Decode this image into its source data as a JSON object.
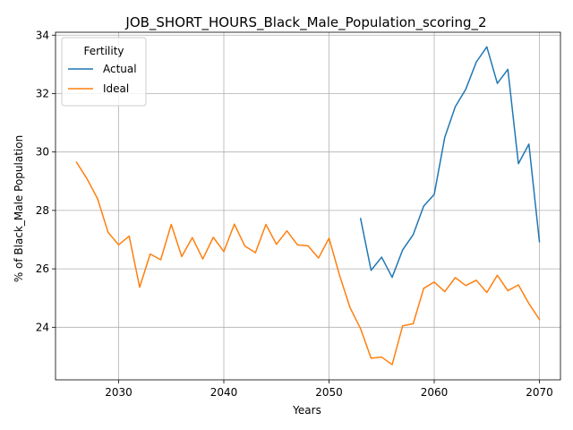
{
  "chart_data": {
    "type": "line",
    "title": "JOB_SHORT_HOURS_Black_Male_Population_scoring_2",
    "xlabel": "Years",
    "ylabel": "% of Black_Male Population",
    "xlim": [
      2024,
      2072
    ],
    "ylim": [
      22.2,
      34.1
    ],
    "xticks": [
      2030,
      2040,
      2050,
      2060,
      2070
    ],
    "yticks": [
      24,
      26,
      28,
      30,
      32,
      34
    ],
    "grid": true,
    "legend": {
      "title": "Fertility",
      "placement": "top-left"
    },
    "series": [
      {
        "name": "Actual",
        "color": "#1f77b4",
        "x": [
          2053,
          2054,
          2055,
          2056,
          2057,
          2058,
          2059,
          2060,
          2061,
          2062,
          2063,
          2064,
          2065,
          2066,
          2067,
          2068,
          2069,
          2070
        ],
        "y": [
          27.72,
          25.95,
          26.4,
          25.71,
          26.65,
          27.17,
          28.15,
          28.55,
          30.5,
          31.55,
          32.15,
          33.08,
          33.6,
          32.35,
          32.83,
          29.6,
          30.27,
          26.93
        ]
      },
      {
        "name": "Ideal",
        "color": "#ff7f0e",
        "x": [
          2026,
          2027,
          2028,
          2029,
          2030,
          2031,
          2032,
          2033,
          2034,
          2035,
          2036,
          2037,
          2038,
          2039,
          2040,
          2041,
          2042,
          2043,
          2044,
          2045,
          2046,
          2047,
          2048,
          2049,
          2050,
          2051,
          2052,
          2053,
          2054,
          2055,
          2056,
          2057,
          2058,
          2059,
          2060,
          2061,
          2062,
          2063,
          2064,
          2065,
          2066,
          2067,
          2068,
          2069,
          2070
        ],
        "y": [
          29.65,
          29.08,
          28.4,
          27.25,
          26.82,
          27.12,
          25.37,
          26.51,
          26.31,
          27.52,
          26.42,
          27.07,
          26.34,
          27.08,
          26.59,
          27.53,
          26.78,
          26.55,
          27.52,
          26.84,
          27.3,
          26.82,
          26.79,
          26.37,
          27.05,
          25.78,
          24.67,
          23.95,
          22.94,
          22.98,
          22.72,
          24.05,
          24.12,
          25.33,
          25.55,
          25.22,
          25.7,
          25.43,
          25.61,
          25.19,
          25.78,
          25.25,
          25.45,
          24.81,
          24.27
        ]
      }
    ]
  }
}
